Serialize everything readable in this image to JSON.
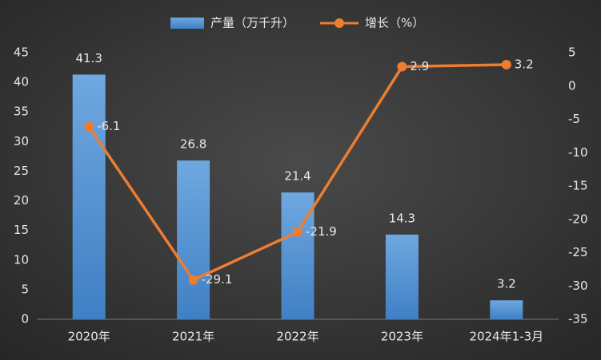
{
  "chart_data": {
    "type": "bar_line",
    "categories": [
      "2020年",
      "2021年",
      "2022年",
      "2023年",
      "2024年1-3月"
    ],
    "series": [
      {
        "name": "产量（万千升）",
        "type": "bar",
        "color": "#5b9bd5",
        "values": [
          41.3,
          26.8,
          21.4,
          14.3,
          3.2
        ]
      },
      {
        "name": "增长（%）",
        "type": "line",
        "axis": "y2",
        "color": "#ed7d31",
        "values": [
          -6.1,
          -29.1,
          -21.9,
          2.9,
          3.2
        ]
      }
    ],
    "ylim": [
      0,
      45
    ],
    "yticks": [
      0,
      5,
      10,
      15,
      20,
      25,
      30,
      35,
      40,
      45
    ],
    "y2lim": [
      -35,
      5
    ],
    "y2ticks": [
      -35,
      -30,
      -25,
      -20,
      -15,
      -10,
      -5,
      0,
      5
    ],
    "grid": false,
    "legend": "top"
  }
}
